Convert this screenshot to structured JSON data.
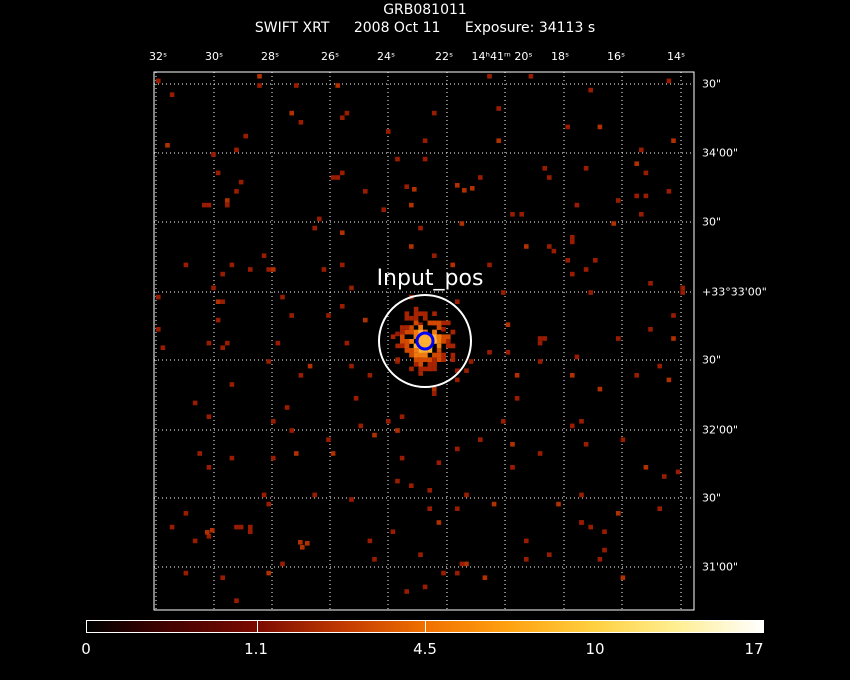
{
  "title": "GRB081011",
  "subtitle": {
    "instrument": "SWIFT XRT",
    "date": "2008 Oct 11",
    "exposure": "Exposure: 34113 s"
  },
  "ra_labels": [
    "32ˢ",
    "30ˢ",
    "28ˢ",
    "26ˢ",
    "24ˢ",
    "22ˢ",
    "14ʰ41ᵐ 20ˢ",
    "18ˢ",
    "16ˢ",
    "14ˢ"
  ],
  "dec_labels": [
    "30\"",
    "34'00\"",
    "30\"",
    "+33°33'00\"",
    "30\"",
    "32'00\"",
    "30\"",
    "31'00\""
  ],
  "source_label": "Input_pos",
  "colorbar_labels": [
    "0",
    "1.1",
    "4.5",
    "10",
    "17"
  ],
  "colors": {
    "background": "#000000",
    "grid": "#ffffff",
    "marker_circle": "#ffffff",
    "marker_inner": "#0000ff",
    "count_low": "#a02000",
    "count_high": "#ffd040"
  }
}
